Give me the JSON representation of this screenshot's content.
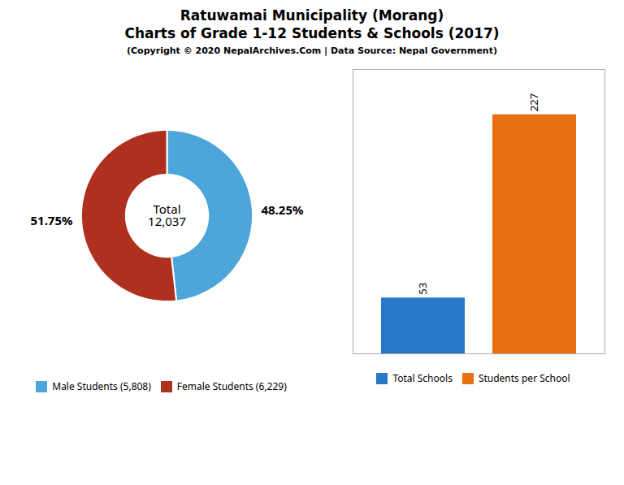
{
  "title": "Ratuwamai Municipality (Morang)\nCharts of Grade 1-12 Students & Schools (2017)",
  "subtitle": "(Copyright © 2020 NepalArchives.Com | Data Source: Nepal Government)",
  "chart_data": [
    {
      "type": "pie",
      "categories": [
        "Male Students (5,808)",
        "Female Students (6,229)"
      ],
      "values": [
        48.25,
        51.75
      ],
      "value_labels": [
        "48.25%",
        "51.75%"
      ],
      "colors": [
        "#4da6d9",
        "#b03020"
      ],
      "data_labels": true,
      "annotation": "Total\n12,037",
      "legend": "bottom"
    },
    {
      "type": "bar",
      "categories": [
        "Total Schools",
        "Students per School"
      ],
      "values": [
        53,
        227
      ],
      "colors": [
        "#2878c8",
        "#e87010"
      ],
      "ylim": [
        0,
        270
      ],
      "data_labels": true,
      "tick_labels": false,
      "legend": "bottom"
    }
  ]
}
